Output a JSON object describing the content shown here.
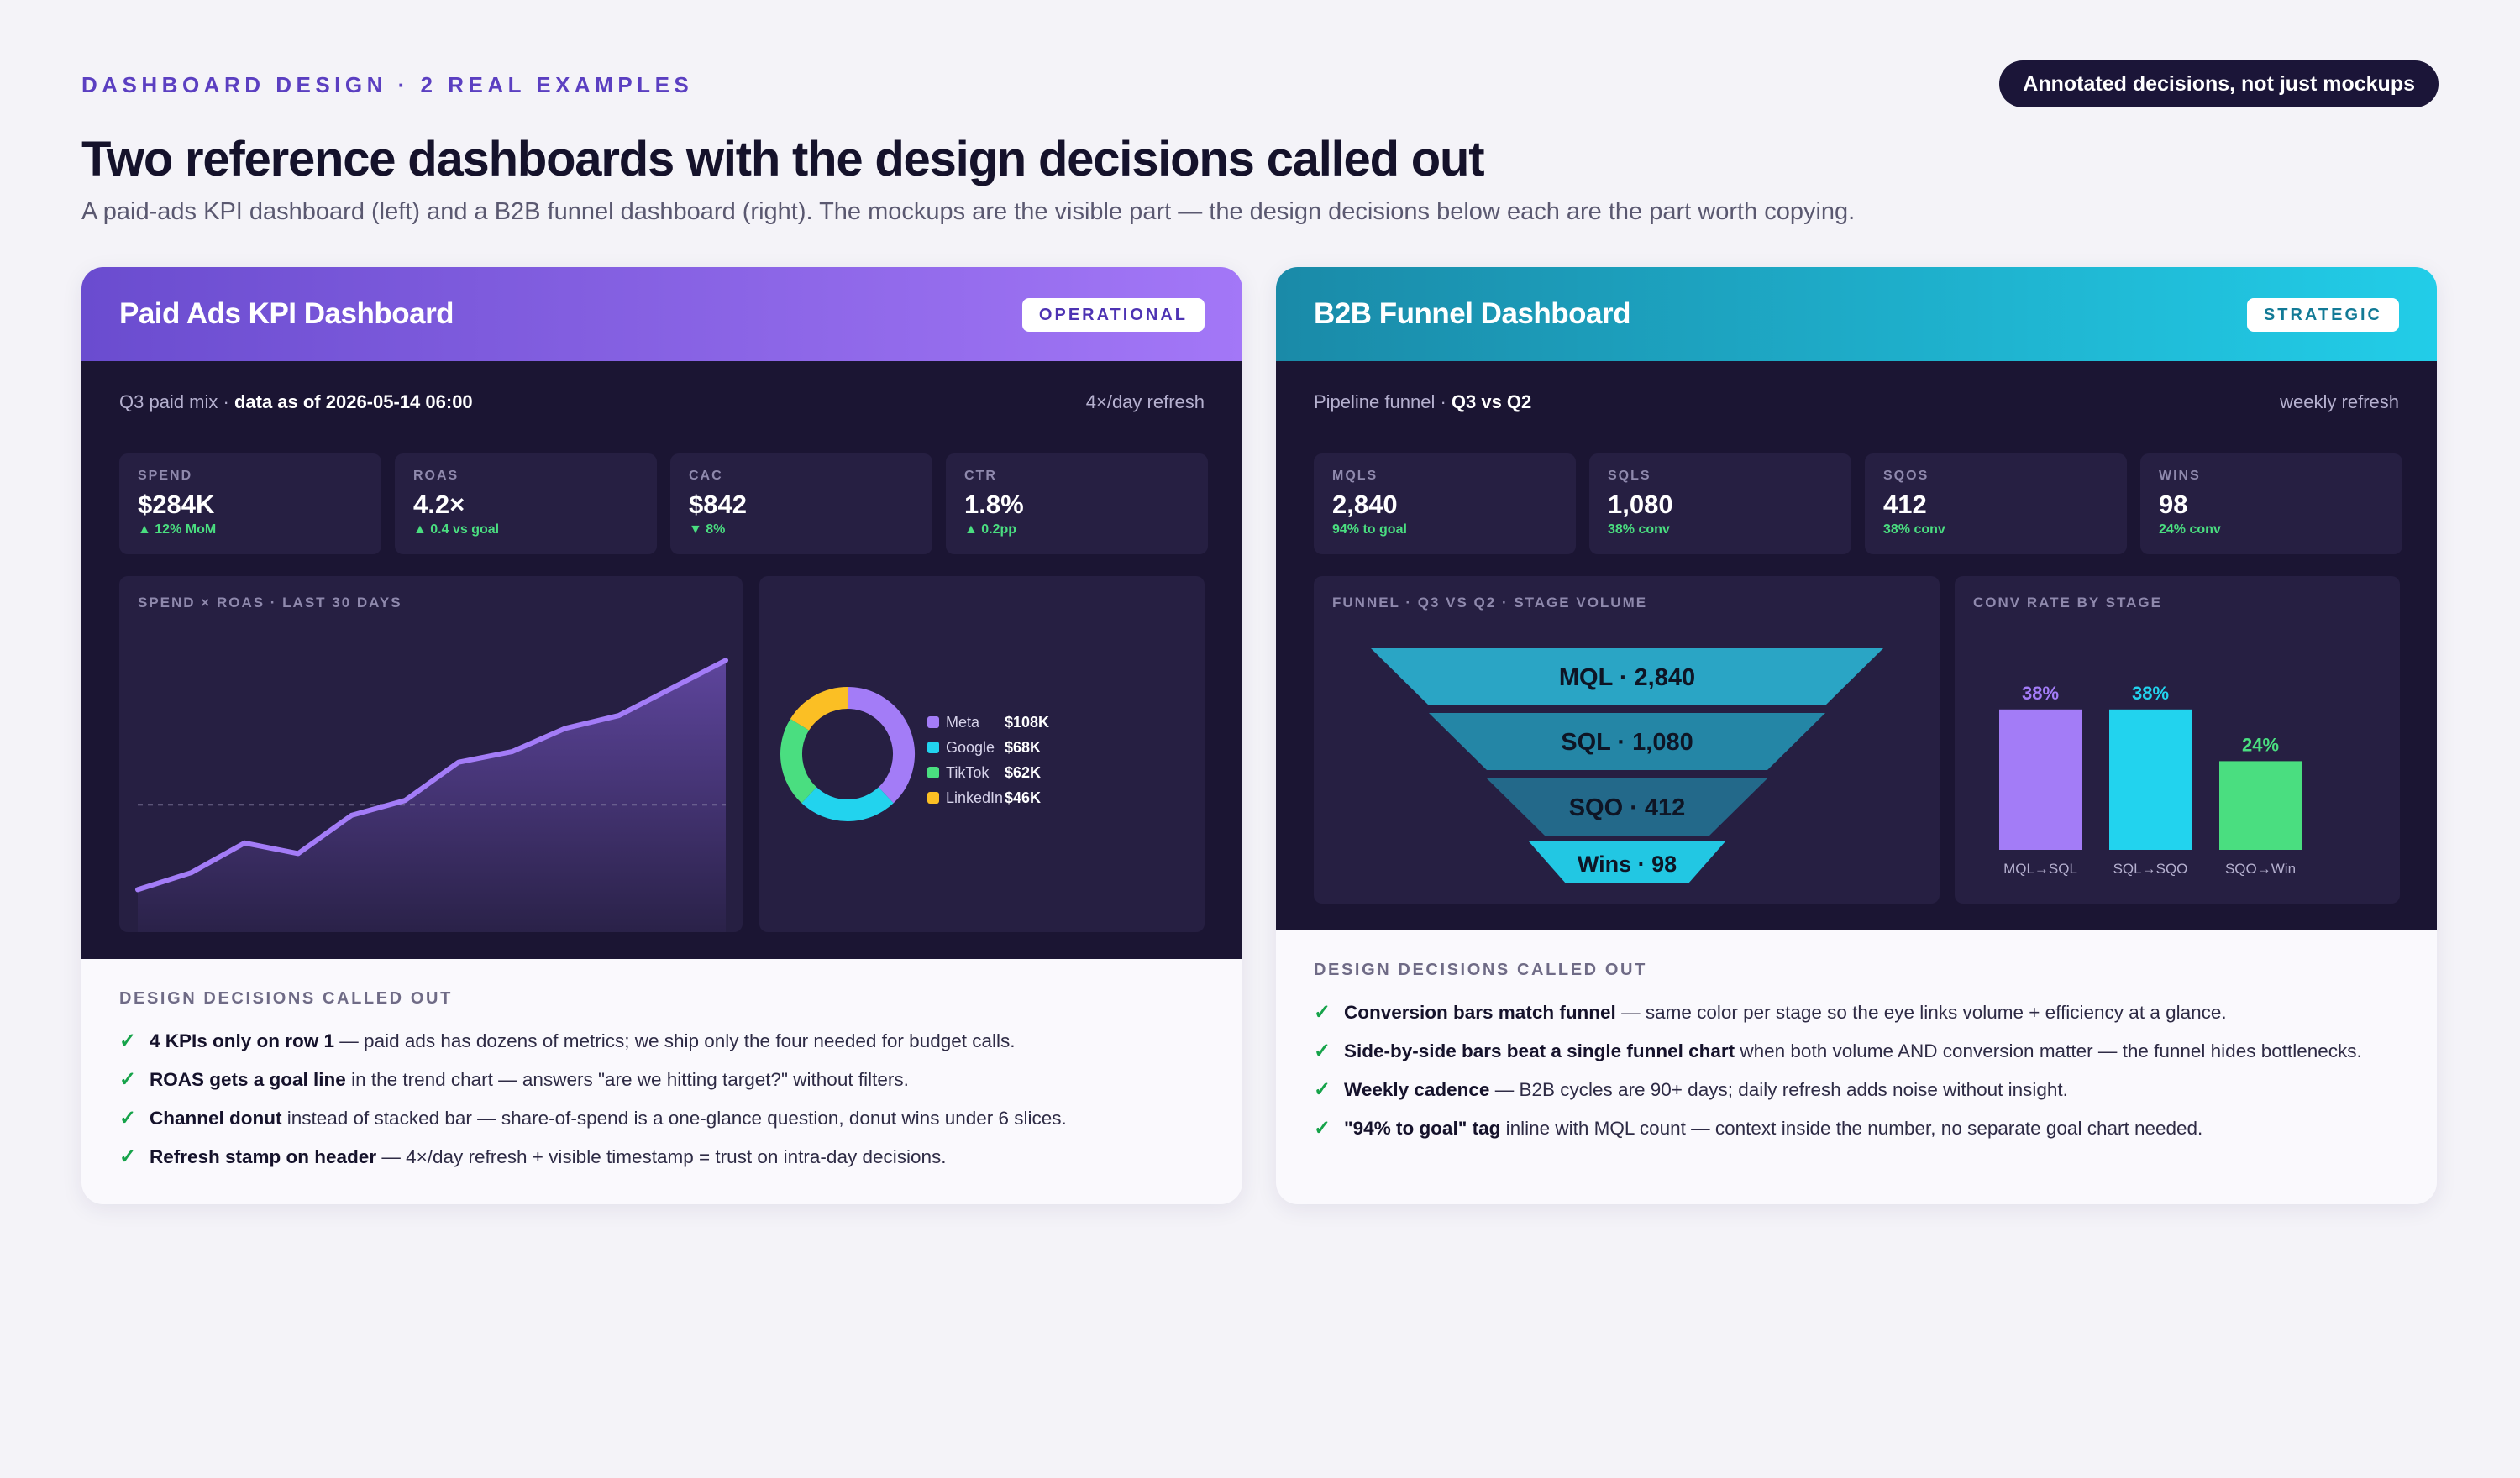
{
  "header": {
    "eyebrow": "DASHBOARD DESIGN · 2 REAL EXAMPLES",
    "pill": "Annotated decisions, not just mockups",
    "title": "Two reference dashboards with the design decisions called out",
    "subtitle": "A paid-ads KPI dashboard (left) and a B2B funnel dashboard (right). The mockups are the visible part — the design decisions below each are the part worth copying."
  },
  "colors": {
    "purple": "#a37cf7",
    "cyan": "#22d3ee",
    "green": "#4ade80",
    "yellow": "#fbbf24",
    "ink": "#1b1533"
  },
  "left": {
    "title": "Paid Ads KPI Dashboard",
    "tag": "OPERATIONAL",
    "meta_prefix": "Q3 paid mix · ",
    "meta_bold": "data as of 2026-05-14 06:00",
    "refresh": "4×/day refresh",
    "kpis": [
      {
        "label": "SPEND",
        "value": "$284K",
        "delta": "▲ 12% MoM"
      },
      {
        "label": "ROAS",
        "value": "4.2×",
        "delta": "▲ 0.4 vs goal"
      },
      {
        "label": "CAC",
        "value": "$842",
        "delta": "▼ 8%"
      },
      {
        "label": "CTR",
        "value": "1.8%",
        "delta": "▲ 0.2pp"
      }
    ],
    "trend_label": "SPEND × ROAS · LAST 30 DAYS",
    "decisions_head": "DESIGN DECISIONS CALLED OUT",
    "decisions": [
      {
        "bold": "4 KPIs only on row 1",
        "rest": " — paid ads has dozens of metrics; we ship only the four needed for budget calls."
      },
      {
        "bold": "ROAS gets a goal line",
        "rest": " in the trend chart — answers \"are we hitting target?\" without filters."
      },
      {
        "bold": "Channel donut",
        "rest": " instead of stacked bar — share-of-spend is a one-glance question, donut wins under 6 slices."
      },
      {
        "bold": "Refresh stamp on header",
        "rest": " — 4×/day refresh + visible timestamp = trust on intra-day decisions."
      }
    ]
  },
  "right": {
    "title": "B2B Funnel Dashboard",
    "tag": "STRATEGIC",
    "meta_prefix": "Pipeline funnel · ",
    "meta_bold": "Q3 vs Q2",
    "refresh": "weekly refresh",
    "kpis": [
      {
        "label": "MQLS",
        "value": "2,840",
        "delta": "94% to goal"
      },
      {
        "label": "SQLS",
        "value": "1,080",
        "delta": "38% conv"
      },
      {
        "label": "SQOS",
        "value": "412",
        "delta": "38% conv"
      },
      {
        "label": "WINS",
        "value": "98",
        "delta": "24% conv"
      }
    ],
    "funnel_label": "FUNNEL · Q3 VS Q2 · STAGE VOLUME",
    "funnel_stages": [
      "MQL · 2,840",
      "SQL · 1,080",
      "SQO · 412",
      "Wins · 98"
    ],
    "conv_label": "CONV RATE BY STAGE",
    "decisions_head": "DESIGN DECISIONS CALLED OUT",
    "decisions": [
      {
        "bold": "Conversion bars match funnel",
        "rest": " — same color per stage so the eye links volume + efficiency at a glance."
      },
      {
        "bold": "Side-by-side bars beat a single funnel chart",
        "rest": " when both volume AND conversion matter — the funnel hides bottlenecks."
      },
      {
        "bold": "Weekly cadence",
        "rest": " — B2B cycles are 90+ days; daily refresh adds noise without insight."
      },
      {
        "bold": "\"94% to goal\" tag",
        "rest": " inline with MQL count — context inside the number, no separate goal chart needed."
      }
    ]
  },
  "chart_data": [
    {
      "type": "area",
      "title": "SPEND × ROAS · LAST 30 DAYS",
      "x": [
        1,
        2,
        3,
        4,
        5,
        6,
        7,
        8,
        9,
        10,
        11,
        12
      ],
      "series": [
        {
          "values": [
            20,
            28,
            42,
            37,
            55,
            62,
            80,
            85,
            96,
            102,
            115,
            128
          ]
        }
      ],
      "goal_line": 60,
      "ylim": [
        0,
        140
      ],
      "grid": false,
      "color": "#a37cf7"
    },
    {
      "type": "pie",
      "donut": true,
      "categories": [
        "Meta",
        "Google",
        "TikTok",
        "LinkedIn"
      ],
      "values": [
        108,
        68,
        62,
        46
      ],
      "value_labels": [
        "$108K",
        "$68K",
        "$62K",
        "$46K"
      ],
      "colors": [
        "#a37cf7",
        "#22d3ee",
        "#4ade80",
        "#fbbf24"
      ],
      "legend": "right"
    },
    {
      "type": "bar",
      "title": "CONV RATE BY STAGE",
      "categories": [
        "MQL→SQL",
        "SQL→SQO",
        "SQO→Win"
      ],
      "values": [
        38,
        38,
        24
      ],
      "value_labels": [
        "38%",
        "38%",
        "24%"
      ],
      "colors": [
        "#a37cf7",
        "#22d3ee",
        "#4ade80"
      ],
      "ylim": [
        0,
        50
      ]
    }
  ]
}
